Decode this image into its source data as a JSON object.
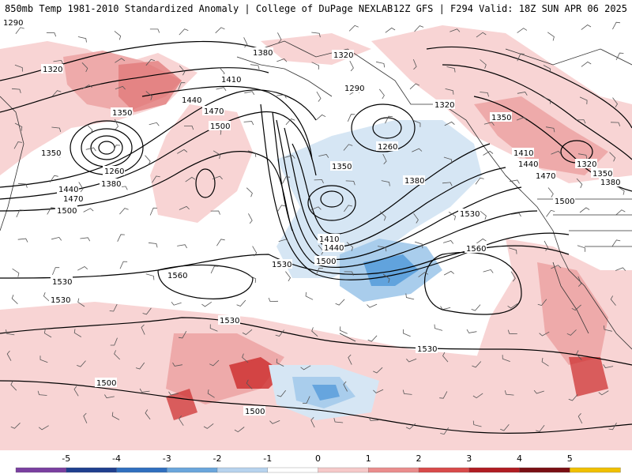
{
  "header": {
    "left": "850mb Temp 1981-2010 Standardized Anomaly | College of DuPage NEXLAB",
    "right": "12Z GFS | F294 Valid: 18Z SUN APR 06 2025"
  },
  "contour_labels": [
    {
      "text": "1290"
    },
    {
      "text": "1320"
    },
    {
      "text": "1350"
    },
    {
      "text": "1350"
    },
    {
      "text": "1260"
    },
    {
      "text": "1380"
    },
    {
      "text": "1440"
    },
    {
      "text": "1470"
    },
    {
      "text": "1500"
    },
    {
      "text": "1380"
    },
    {
      "text": "1410"
    },
    {
      "text": "1440"
    },
    {
      "text": "1470"
    },
    {
      "text": "1500"
    },
    {
      "text": "1320"
    },
    {
      "text": "1290"
    },
    {
      "text": "1260"
    },
    {
      "text": "1350"
    },
    {
      "text": "1380"
    },
    {
      "text": "1410"
    },
    {
      "text": "1440"
    },
    {
      "text": "1500"
    },
    {
      "text": "1530"
    },
    {
      "text": "1530"
    },
    {
      "text": "1560"
    },
    {
      "text": "1560"
    },
    {
      "text": "1530"
    },
    {
      "text": "1530"
    },
    {
      "text": "1530"
    },
    {
      "text": "1530"
    },
    {
      "text": "1500"
    },
    {
      "text": "1500"
    },
    {
      "text": "1320"
    },
    {
      "text": "1350"
    },
    {
      "text": "1410"
    },
    {
      "text": "1440"
    },
    {
      "text": "1470"
    },
    {
      "text": "1320"
    },
    {
      "text": "1350"
    },
    {
      "text": "1380"
    },
    {
      "text": "1500"
    }
  ],
  "colorbar": {
    "ticks": [
      "-5",
      "-4",
      "-3",
      "-2",
      "-1",
      "0",
      "1",
      "2",
      "3",
      "4",
      "5"
    ],
    "colors": [
      "#7a3fa0",
      "#1f3f8f",
      "#2f6fbf",
      "#6aa6dc",
      "#b7d3ee",
      "#ffffff",
      "#f6c9c9",
      "#ea8d8d",
      "#d84a4a",
      "#b01c22",
      "#7a0f14",
      "#f0c000"
    ]
  },
  "colors": {
    "warm_light": "#f8d4d4",
    "warm_mid": "#eeaaaa",
    "warm_strong": "#e07474",
    "warm_hot": "#cc2a2a",
    "cold_light": "#d6e6f4",
    "cold_mid": "#a9cdec",
    "cold_strong": "#4a94d8",
    "contour": "#000000",
    "coast": "#333333"
  }
}
